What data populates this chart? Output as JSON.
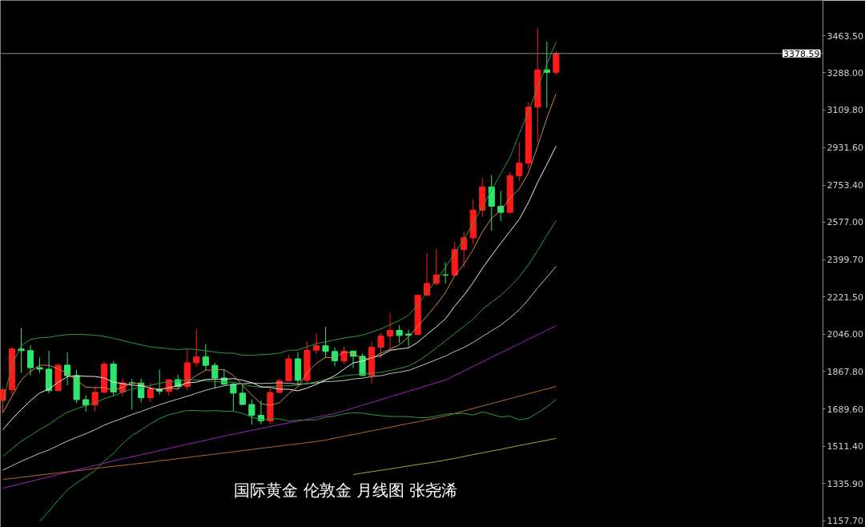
{
  "chart_data": {
    "type": "candlestick",
    "categories": [
      null,
      null,
      null,
      null,
      null,
      null,
      null,
      null,
      null,
      null,
      null,
      null,
      null,
      null,
      null,
      null,
      null,
      null,
      null,
      null,
      null,
      null,
      null,
      null,
      null,
      null,
      null,
      null,
      null,
      null,
      null,
      null,
      null,
      null,
      null,
      null,
      null,
      null,
      null,
      null,
      null,
      null,
      null,
      null,
      null,
      null,
      null,
      null,
      null,
      null,
      null,
      null,
      null,
      null,
      null,
      null,
      null,
      null,
      null,
      null,
      null
    ],
    "ohlc": [
      [
        1730,
        1789,
        1671,
        1781
      ],
      [
        1781,
        1984,
        1757,
        1975
      ],
      [
        1975,
        2075,
        1863,
        1967
      ],
      [
        1967,
        1992,
        1849,
        1886
      ],
      [
        1886,
        1933,
        1860,
        1879
      ],
      [
        1879,
        1966,
        1765,
        1777
      ],
      [
        1777,
        1906,
        1776,
        1898
      ],
      [
        1898,
        1959,
        1802,
        1848
      ],
      [
        1848,
        1875,
        1717,
        1734
      ],
      [
        1734,
        1755,
        1677,
        1708
      ],
      [
        1708,
        1798,
        1678,
        1769
      ],
      [
        1769,
        1916,
        1766,
        1903
      ],
      [
        1903,
        1917,
        1750,
        1770
      ],
      [
        1770,
        1834,
        1750,
        1814
      ],
      [
        1814,
        1832,
        1688,
        1813
      ],
      [
        1813,
        1834,
        1721,
        1743
      ],
      [
        1743,
        1814,
        1722,
        1783
      ],
      [
        1783,
        1877,
        1758,
        1774
      ],
      [
        1774,
        1831,
        1753,
        1829
      ],
      [
        1829,
        1853,
        1780,
        1797
      ],
      [
        1797,
        1974,
        1780,
        1909
      ],
      [
        1909,
        2070,
        1890,
        1937
      ],
      [
        1937,
        1998,
        1872,
        1897
      ],
      [
        1897,
        1910,
        1787,
        1837
      ],
      [
        1837,
        1879,
        1805,
        1807
      ],
      [
        1807,
        1814,
        1681,
        1765
      ],
      [
        1765,
        1808,
        1709,
        1711
      ],
      [
        1711,
        1735,
        1615,
        1660
      ],
      [
        1660,
        1730,
        1617,
        1633
      ],
      [
        1633,
        1786,
        1616,
        1768
      ],
      [
        1768,
        1833,
        1765,
        1824
      ],
      [
        1824,
        1949,
        1823,
        1928
      ],
      [
        1928,
        1959,
        1804,
        1826
      ],
      [
        1826,
        2009,
        1810,
        1969
      ],
      [
        1969,
        2048,
        1950,
        1990
      ],
      [
        1990,
        2079,
        1932,
        1963
      ],
      [
        1963,
        1983,
        1893,
        1919
      ],
      [
        1919,
        1987,
        1903,
        1965
      ],
      [
        1965,
        1966,
        1884,
        1940
      ],
      [
        1940,
        1953,
        1846,
        1849
      ],
      [
        1849,
        2009,
        1810,
        1983
      ],
      [
        1983,
        2052,
        1931,
        2036
      ],
      [
        2036,
        2146,
        1973,
        2063
      ],
      [
        2063,
        2088,
        2002,
        2039
      ],
      [
        2046,
        2066,
        1984,
        2040
      ],
      [
        2044,
        2236,
        2039,
        2230
      ],
      [
        2230,
        2431,
        2228,
        2286
      ],
      [
        2286,
        2450,
        2277,
        2327
      ],
      [
        2327,
        2387,
        2286,
        2326
      ],
      [
        2326,
        2483,
        2319,
        2447
      ],
      [
        2447,
        2531,
        2364,
        2503
      ],
      [
        2503,
        2685,
        2471,
        2634
      ],
      [
        2634,
        2790,
        2604,
        2744
      ],
      [
        2744,
        2801,
        2536,
        2653
      ],
      [
        2653,
        2726,
        2583,
        2624
      ],
      [
        2624,
        2817,
        2614,
        2798
      ],
      [
        2798,
        2956,
        2772,
        2858
      ],
      [
        2858,
        3148,
        2832,
        3124
      ],
      [
        3124,
        3500,
        2957,
        3301
      ],
      [
        3301,
        3435,
        3121,
        3289
      ],
      [
        3289,
        3390,
        3275,
        3378.59
      ]
    ],
    "colors": [
      "#ff1a1a",
      "#ff1a1a",
      "#2ee66e",
      "#2ee66e",
      "#2ee66e",
      "#2ee66e",
      "#ff1a1a",
      "#2ee66e",
      "#2ee66e",
      "#2ee66e",
      "#ff1a1a",
      "#ff1a1a",
      "#2ee66e",
      "#ff1a1a",
      "#2ee66e",
      "#2ee66e",
      "#ff1a1a",
      "#2ee66e",
      "#ff1a1a",
      "#2ee66e",
      "#ff1a1a",
      "#ff1a1a",
      "#2ee66e",
      "#2ee66e",
      "#2ee66e",
      "#2ee66e",
      "#2ee66e",
      "#2ee66e",
      "#2ee66e",
      "#ff1a1a",
      "#ff1a1a",
      "#ff1a1a",
      "#2ee66e",
      "#ff1a1a",
      "#ff1a1a",
      "#2ee66e",
      "#2ee66e",
      "#ff1a1a",
      "#2ee66e",
      "#2ee66e",
      "#ff1a1a",
      "#ff1a1a",
      "#ff1a1a",
      "#2ee66e",
      "#2ee66e",
      "#ff1a1a",
      "#ff1a1a",
      "#ff1a1a",
      "#2ee66e",
      "#ff1a1a",
      "#ff1a1a",
      "#ff1a1a",
      "#ff1a1a",
      "#2ee66e",
      "#2ee66e",
      "#ff1a1a",
      "#ff1a1a",
      "#ff1a1a",
      "#ff1a1a",
      "#2ee66e",
      "#ff1a1a"
    ],
    "series": [
      {
        "type": "line",
        "color": "#a8a832",
        "values": [
          null,
          null,
          null,
          null,
          null,
          null,
          null,
          null,
          null,
          null,
          null,
          null,
          null,
          null,
          null,
          null,
          null,
          null,
          null,
          null,
          null,
          null,
          null,
          null,
          null,
          null,
          null,
          null,
          null,
          null,
          null,
          null,
          null,
          null,
          null,
          null,
          null,
          null,
          1378,
          1385,
          1392,
          1398,
          1405,
          1412,
          1419,
          1426,
          1432,
          1439,
          1447,
          1455,
          1464,
          1473,
          1481,
          1490,
          1498,
          1507,
          1516,
          1524,
          1533,
          1541,
          1550
        ]
      },
      {
        "type": "line",
        "color": "#b8682a",
        "values": [
          1355,
          1360,
          1365,
          1370,
          1376,
          1381,
          1386,
          1391,
          1396,
          1401,
          1407,
          1412,
          1417,
          1422,
          1427,
          1432,
          1437,
          1443,
          1448,
          1454,
          1459,
          1465,
          1470,
          1475,
          1481,
          1486,
          1492,
          1497,
          1503,
          1508,
          1514,
          1519,
          1524,
          1530,
          1535,
          1542,
          1551,
          1560,
          1568,
          1577,
          1586,
          1594,
          1603,
          1612,
          1621,
          1629,
          1638,
          1647,
          1657,
          1668,
          1680,
          1692,
          1704,
          1715,
          1727,
          1739,
          1750,
          1762,
          1774,
          1785,
          1797
        ]
      },
      {
        "type": "line",
        "color": "#a020c0",
        "values": [
          1313,
          1324,
          1335,
          1345,
          1356,
          1367,
          1378,
          1389,
          1400,
          1410,
          1421,
          1432,
          1443,
          1453,
          1463,
          1472,
          1482,
          1492,
          1502,
          1512,
          1522,
          1531,
          1541,
          1551,
          1561,
          1570,
          1579,
          1588,
          1597,
          1606,
          1615,
          1624,
          1632,
          1641,
          1650,
          1659,
          1668,
          1681,
          1694,
          1708,
          1721,
          1734,
          1748,
          1761,
          1774,
          1787,
          1801,
          1814,
          1827,
          1849,
          1870,
          1892,
          1913,
          1935,
          1956,
          1978,
          1999,
          2021,
          2042,
          2064,
          2085
        ]
      },
      {
        "type": "line",
        "color": "#2a9d3a",
        "values": [
          null,
          null,
          null,
          null,
          1156,
          1204,
          1256,
          1305,
          1338,
          1367,
          1396,
          1443,
          1479,
          1525,
          1564,
          1590,
          1619,
          1644,
          1662,
          1672,
          1683,
          1682,
          1680,
          1682,
          1679,
          1679,
          1669,
          1651,
          1638,
          1642,
          1643,
          1632,
          1636,
          1637,
          1638,
          1651,
          1656,
          1667,
          1671,
          1670,
          1663,
          1658,
          1654,
          1654,
          1653,
          1649,
          1648,
          1656,
          1665,
          1667,
          1669,
          1661,
          1676,
          1665,
          1651,
          1656,
          1638,
          1645,
          1671,
          1700,
          1736
        ]
      },
      {
        "type": "line",
        "color": "#c0c0c0",
        "values": [
          1399,
          1420,
          1441,
          1460,
          1479,
          1495,
          1516,
          1537,
          1555,
          1572,
          1591,
          1613,
          1630,
          1646,
          1663,
          1678,
          1694,
          1710,
          1724,
          1737,
          1750,
          1765,
          1778,
          1790,
          1800,
          1806,
          1810,
          1813,
          1811,
          1812,
          1814,
          1812,
          1808,
          1810,
          1814,
          1820,
          1821,
          1825,
          1832,
          1836,
          1844,
          1848,
          1858,
          1865,
          1873,
          1889,
          1906,
          1924,
          1941,
          1963,
          1982,
          2006,
          2034,
          2061,
          2088,
          2123,
          2161,
          2210,
          2265,
          2316,
          2368
        ]
      },
      {
        "type": "line",
        "color": "#2a9d3a",
        "values": [
          1464,
          1501,
          1536,
          1564,
          1592,
          1617,
          1647,
          1674,
          1691,
          1705,
          1718,
          1739,
          1752,
          1770,
          1784,
          1792,
          1802,
          1812,
          1819,
          1822,
          1829,
          1827,
          1823,
          1821,
          1817,
          1817,
          1807,
          1798,
          1793,
          1796,
          1799,
          1800,
          1803,
          1811,
          1819,
          1830,
          1837,
          1847,
          1852,
          1855,
          1859,
          1864,
          1872,
          1882,
          1894,
          1917,
          1946,
          1979,
          2014,
          2048,
          2082,
          2117,
          2163,
          2197,
          2229,
          2271,
          2317,
          2375,
          2443,
          2515,
          2585
        ]
      },
      {
        "type": "line",
        "color": "#2a9d3a",
        "values": [
          1720,
          1900,
          1990,
          2020,
          2028,
          2030,
          2038,
          2043,
          2044,
          2043,
          2040,
          2035,
          2025,
          2015,
          2004,
          1994,
          1985,
          1980,
          1976,
          1972,
          1975,
          1972,
          1966,
          1960,
          1955,
          1955,
          1945,
          1945,
          1948,
          1950,
          1955,
          1968,
          1970,
          1985,
          2000,
          2009,
          2018,
          2027,
          2033,
          2040,
          2055,
          2070,
          2090,
          2110,
          2135,
          2185,
          2244,
          2302,
          2363,
          2429,
          2495,
          2573,
          2650,
          2729,
          2807,
          2886,
          2996,
          3105,
          3215,
          3330,
          3434
        ]
      },
      {
        "type": "line",
        "color": "#ececec",
        "values": [
          1591,
          1642,
          1687,
          1729,
          1766,
          1784,
          1816,
          1843,
          1848,
          1845,
          1844,
          1837,
          1817,
          1810,
          1803,
          1800,
          1789,
          1781,
          1791,
          1800,
          1814,
          1817,
          1830,
          1832,
          1831,
          1834,
          1826,
          1815,
          1795,
          1792,
          1784,
          1783,
          1776,
          1789,
          1807,
          1827,
          1848,
          1879,
          1909,
          1917,
          1933,
          1944,
          1968,
          1975,
          1980,
          2007,
          2044,
          2080,
          2118,
          2178,
          2230,
          2290,
          2358,
          2419,
          2477,
          2534,
          2591,
          2671,
          2767,
          2852,
          2939
        ]
      },
      {
        "type": "line",
        "color": "#d0884a",
        "values": [
          1672,
          1750,
          1828,
          1868,
          1898,
          1897,
          1881,
          1858,
          1827,
          1793,
          1791,
          1792,
          1777,
          1793,
          1814,
          1809,
          1785,
          1785,
          1788,
          1785,
          1818,
          1849,
          1874,
          1875,
          1877,
          1849,
          1803,
          1756,
          1715,
          1707,
          1719,
          1763,
          1796,
          1863,
          1907,
          1935,
          1933,
          1961,
          1955,
          1927,
          1931,
          1955,
          1974,
          1994,
          2033,
          2082,
          2132,
          2185,
          2243,
          2323,
          2378,
          2447,
          2531,
          2596,
          2632,
          2691,
          2735,
          2811,
          2939,
          3072,
          3188
        ]
      }
    ],
    "ylim": [
      1127,
      3631
    ],
    "yticks": [
      {
        "value": 3463.5,
        "label": "3463.50"
      },
      {
        "value": 3288,
        "label": "3288.00"
      },
      {
        "value": 3109.8,
        "label": "3109.80"
      },
      {
        "value": 2931.6,
        "label": "2931.60"
      },
      {
        "value": 2753.4,
        "label": "2753.40"
      },
      {
        "value": 2577,
        "label": "2577.00"
      },
      {
        "value": 2399.7,
        "label": "2399.70"
      },
      {
        "value": 2221.5,
        "label": "2221.50"
      },
      {
        "value": 2046,
        "label": "2046.00"
      },
      {
        "value": 1867.8,
        "label": "1867.80"
      },
      {
        "value": 1689.6,
        "label": "1689.60"
      },
      {
        "value": 1511.4,
        "label": "1511.40"
      },
      {
        "value": 1335.9,
        "label": "1335.90"
      },
      {
        "value": 1157.7,
        "label": "1157.70"
      }
    ],
    "tick_labels": "y",
    "ref_lines": [
      {
        "axis": "y",
        "value": 3378.59,
        "label": "3378.59",
        "color": "#8a8a8a"
      }
    ],
    "annotations": [
      "国际黄金 伦敦金 月线图 张尧浠"
    ]
  }
}
